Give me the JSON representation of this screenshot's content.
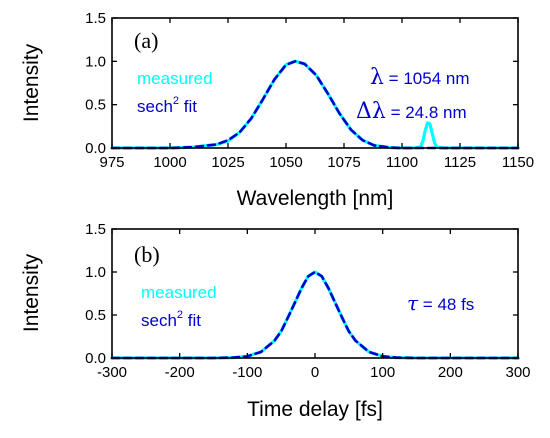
{
  "chart_data": [
    {
      "type": "line",
      "panel_label": "(a)",
      "xlabel": "Wavelength [nm]",
      "ylabel": "Intensity",
      "xlim": [
        975,
        1150
      ],
      "ylim": [
        0,
        1.5
      ],
      "x_ticks": [
        "975",
        "1000",
        "1025",
        "1050",
        "1075",
        "1100",
        "1125",
        "1150"
      ],
      "y_ticks": [
        "0.0",
        "0.5",
        "1.0",
        "1.5"
      ],
      "series": [
        {
          "name": "measured",
          "color": "#00ffff",
          "style": "solid",
          "x": [
            975,
            1000,
            1010,
            1020,
            1025,
            1030,
            1035,
            1040,
            1045,
            1050,
            1054,
            1058,
            1063,
            1068,
            1073,
            1078,
            1083,
            1088,
            1095,
            1100,
            1105,
            1108,
            1109,
            1110,
            1111,
            1112,
            1113,
            1114,
            1115,
            1118,
            1125,
            1150
          ],
          "y": [
            0,
            0,
            0.01,
            0.04,
            0.08,
            0.18,
            0.34,
            0.56,
            0.79,
            0.96,
            1.0,
            0.97,
            0.84,
            0.63,
            0.4,
            0.21,
            0.09,
            0.03,
            0.005,
            0,
            0,
            0.01,
            0.08,
            0.2,
            0.29,
            0.28,
            0.17,
            0.06,
            0.01,
            0,
            0,
            0
          ]
        },
        {
          "name": "sech² fit",
          "color": "#0000cc",
          "style": "dashed",
          "x": [
            975,
            1000,
            1010,
            1020,
            1025,
            1030,
            1035,
            1040,
            1045,
            1050,
            1054,
            1058,
            1063,
            1068,
            1073,
            1078,
            1083,
            1088,
            1095,
            1100,
            1125,
            1150
          ],
          "y": [
            0,
            0,
            0.01,
            0.04,
            0.09,
            0.18,
            0.34,
            0.56,
            0.79,
            0.96,
            1.0,
            0.97,
            0.84,
            0.63,
            0.4,
            0.21,
            0.09,
            0.03,
            0.005,
            0,
            0,
            0
          ]
        }
      ],
      "legend": {
        "position": "left",
        "measured_label": "measured",
        "fit_label": "sech",
        "fit_exponent": "2",
        "fit_suffix": " fit"
      },
      "annotations": {
        "lambda_symbol": "λ",
        "lambda_value": " = 1054 nm",
        "dlambda_symbol": "Δλ",
        "dlambda_value": " = 24.8 nm"
      }
    },
    {
      "type": "line",
      "panel_label": "(b)",
      "xlabel": "Time delay [fs]",
      "ylabel": "Intensity",
      "xlim": [
        -300,
        300
      ],
      "ylim": [
        0,
        1.5
      ],
      "x_ticks": [
        "-300",
        "-200",
        "-100",
        "0",
        "100",
        "200",
        "300"
      ],
      "y_ticks": [
        "0.0",
        "0.5",
        "1.0",
        "1.5"
      ],
      "series": [
        {
          "name": "measured",
          "color": "#00ffff",
          "style": "solid",
          "x": [
            -300,
            -150,
            -120,
            -100,
            -80,
            -60,
            -50,
            -40,
            -30,
            -20,
            -10,
            0,
            10,
            20,
            30,
            40,
            50,
            60,
            80,
            100,
            120,
            150,
            300
          ],
          "y": [
            0,
            0,
            0.005,
            0.02,
            0.07,
            0.2,
            0.31,
            0.47,
            0.64,
            0.81,
            0.95,
            1.0,
            0.95,
            0.81,
            0.64,
            0.47,
            0.31,
            0.2,
            0.07,
            0.02,
            0.005,
            0,
            0
          ]
        },
        {
          "name": "sech² fit",
          "color": "#0000cc",
          "style": "dashed",
          "x": [
            -300,
            -150,
            -120,
            -100,
            -80,
            -60,
            -50,
            -40,
            -30,
            -20,
            -10,
            0,
            10,
            20,
            30,
            40,
            50,
            60,
            80,
            100,
            120,
            150,
            300
          ],
          "y": [
            0,
            0,
            0.005,
            0.02,
            0.07,
            0.2,
            0.31,
            0.47,
            0.64,
            0.81,
            0.95,
            1.0,
            0.95,
            0.81,
            0.64,
            0.47,
            0.31,
            0.2,
            0.07,
            0.02,
            0.005,
            0,
            0
          ]
        }
      ],
      "legend": {
        "position": "left",
        "measured_label": "measured",
        "fit_label": "sech",
        "fit_exponent": "2",
        "fit_suffix": " fit"
      },
      "annotations": {
        "tau_symbol": "τ",
        "tau_value": " = 48 fs"
      }
    }
  ]
}
